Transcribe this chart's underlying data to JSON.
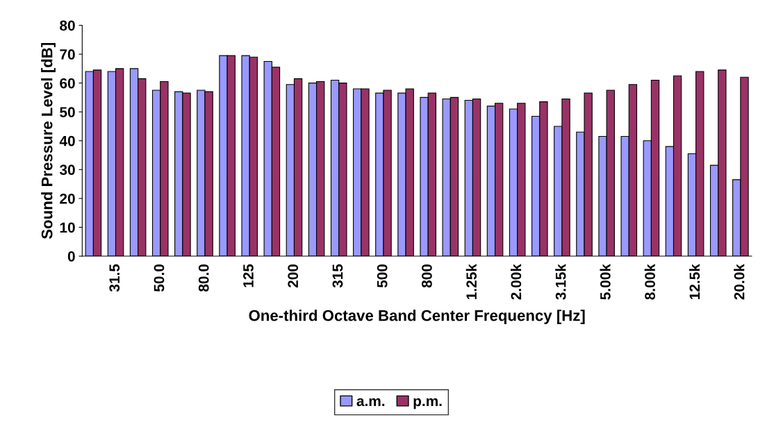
{
  "chart_data": {
    "type": "bar",
    "xlabel": "One-third Octave Band Center Frequency [Hz]",
    "ylabel": "Sound Pressure Level [dB]",
    "categories": [
      null,
      "31.5",
      null,
      "50.0",
      null,
      "80.0",
      null,
      "125",
      null,
      "200",
      null,
      "315",
      null,
      "500",
      null,
      "800",
      null,
      "1.25k",
      null,
      "2.00k",
      null,
      "3.15k",
      null,
      "5.00k",
      null,
      "8.00k",
      null,
      "12.5k",
      null,
      "20.0k"
    ],
    "series": [
      {
        "name": "a.m.",
        "color": "#9999ff",
        "values": [
          64,
          64,
          65,
          57.5,
          57,
          57.5,
          69.5,
          69.5,
          67.5,
          59.5,
          60,
          61,
          58,
          56.5,
          56.5,
          55,
          54.5,
          54,
          52,
          51,
          48.5,
          45,
          43,
          41.5,
          41.5,
          40,
          38,
          35.5,
          31.5,
          26.5
        ]
      },
      {
        "name": "p.m.",
        "color": "#993366",
        "values": [
          64.5,
          65,
          61.5,
          60.5,
          56.5,
          57,
          69.5,
          69,
          65.5,
          61.5,
          60.5,
          60,
          58,
          57.5,
          58,
          56.5,
          55,
          54.5,
          53,
          53,
          53.5,
          54.5,
          56.5,
          57.5,
          59.5,
          61,
          62.5,
          64,
          64.5,
          62
        ]
      }
    ],
    "ylim": [
      0,
      80
    ],
    "yticks": [
      0,
      10,
      20,
      30,
      40,
      50,
      60,
      70,
      80
    ],
    "legend": "bottom",
    "grid": false
  }
}
